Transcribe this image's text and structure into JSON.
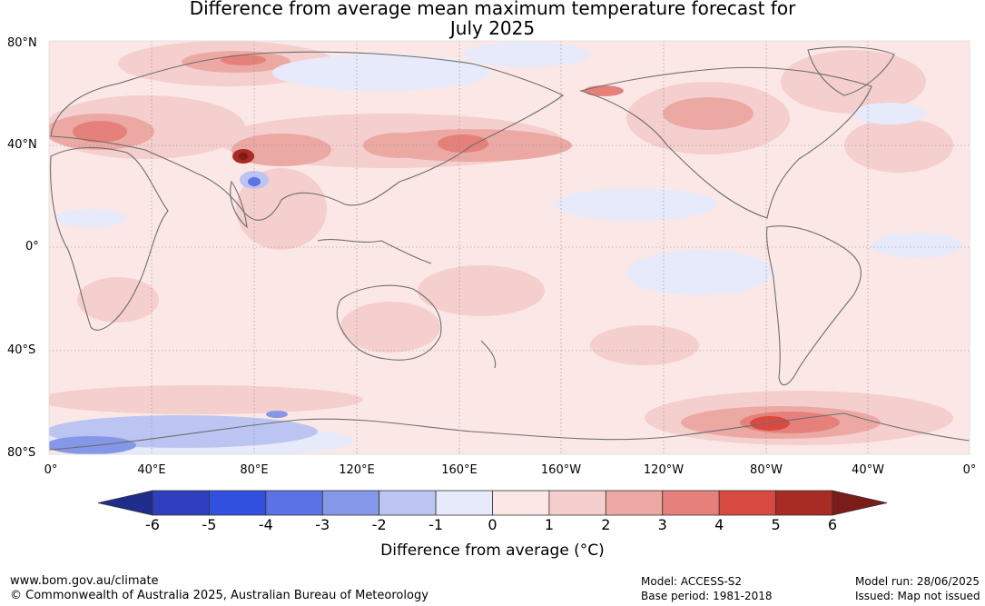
{
  "title": {
    "line1": "Difference from average mean maximum temperature forecast for",
    "line2": "July 2025"
  },
  "map": {
    "lat_labels": [
      "80°N",
      "40°N",
      "0°",
      "40°S",
      "80°S"
    ],
    "lon_labels": [
      "0°",
      "40°E",
      "80°E",
      "120°E",
      "160°E",
      "160°W",
      "120°W",
      "80°W",
      "40°W",
      "0°"
    ],
    "colors": {
      "ocean_neutral": "#fbe8e6",
      "land_outline": "#6e6e6e",
      "grid": "#888888"
    }
  },
  "colorbar": {
    "ticks": [
      "-6",
      "-5",
      "-4",
      "-3",
      "-2",
      "-1",
      "0",
      "1",
      "2",
      "3",
      "4",
      "5",
      "6"
    ],
    "colors": [
      "#1f2d8a",
      "#2f3fbf",
      "#3150df",
      "#5a72e4",
      "#8597e8",
      "#bcc5f1",
      "#e7eafa",
      "#fbe8e6",
      "#f4cfcd",
      "#eca9a4",
      "#e6807a",
      "#d84a40",
      "#a82b24",
      "#7a1c17"
    ],
    "label": "Difference from average (°C)"
  },
  "footer": {
    "site": "www.bom.gov.au/climate",
    "copyright": "© Commonwealth of Australia 2025, Australian Bureau of Meteorology",
    "model": "Model: ACCESS-S2",
    "base_period": "Base period: 1981-2018",
    "model_run": "Model run: 28/06/2025",
    "issued": "Issued: Map not issued"
  }
}
